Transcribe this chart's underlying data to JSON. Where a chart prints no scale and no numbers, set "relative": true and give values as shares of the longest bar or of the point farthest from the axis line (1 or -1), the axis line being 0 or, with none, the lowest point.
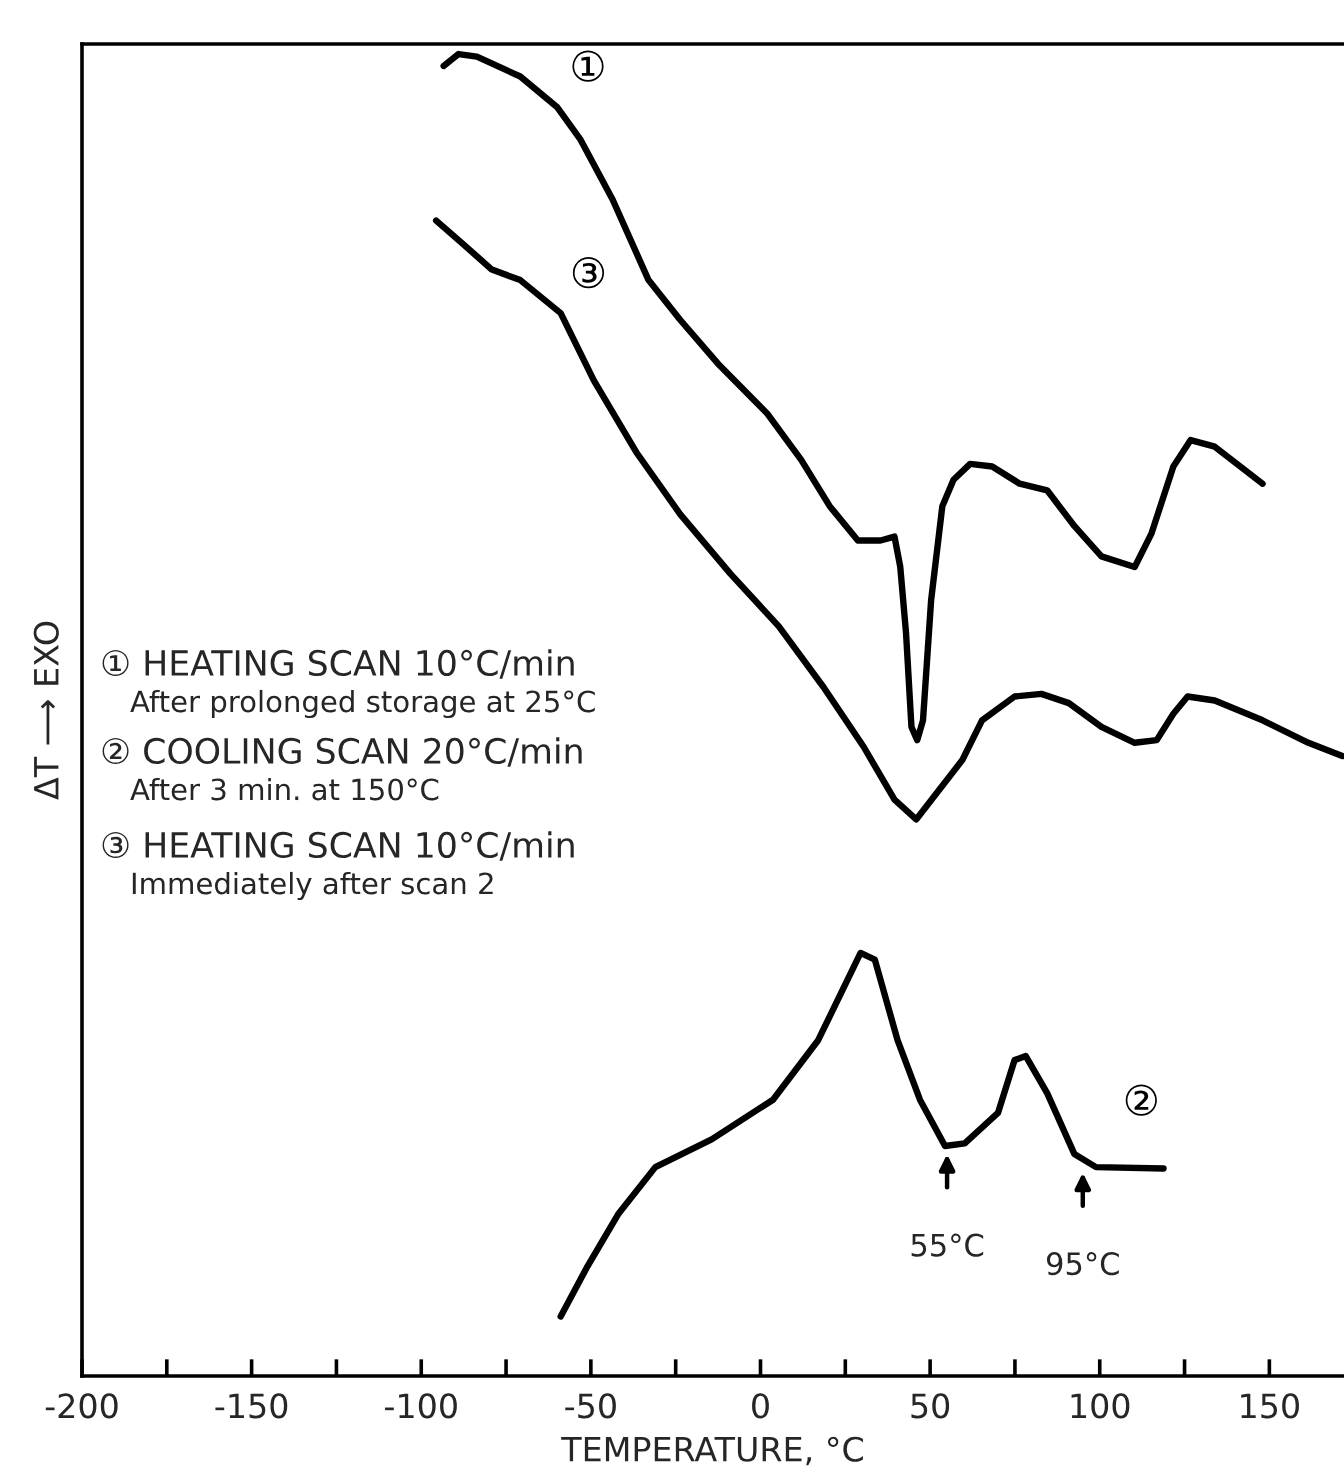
{
  "chart_data": {
    "type": "line",
    "relative": true,
    "xlabel": "TEMPERATURE, °C",
    "ylabel": "ΔT ⟶ EXO",
    "xlim": [
      -200,
      172
    ],
    "xticks": [
      -200,
      {
        "value": -175,
        "label": null
      },
      -150,
      {
        "value": -125,
        "label": null
      },
      -100,
      {
        "value": -75,
        "label": null
      },
      -50,
      {
        "value": -25,
        "label": null
      },
      0,
      {
        "value": 25,
        "label": null
      },
      50,
      {
        "value": 75,
        "label": null
      },
      100,
      {
        "value": 125,
        "label": null
      },
      150
    ],
    "grid": false,
    "marker": "none",
    "line_style": "solid",
    "series": [
      {
        "name": "①",
        "color": "#000000",
        "x": [
          -93.4,
          -89,
          -83.6,
          -70.8,
          -60,
          -53,
          -43.6,
          -33,
          -23.7,
          -12.6,
          2,
          12,
          20.4,
          28.7,
          35.4,
          39.5,
          41.2,
          42.9,
          44.5,
          46.2,
          47.9,
          50.3,
          53.6,
          56.9,
          61.8,
          68.3,
          76.4,
          84.5,
          92.5,
          100.5,
          110.3,
          115.2,
          121.7,
          126.8,
          133.9,
          148
        ],
        "values": [
          0.991,
          1.0,
          0.998,
          0.983,
          0.96,
          0.935,
          0.89,
          0.829,
          0.799,
          0.766,
          0.728,
          0.693,
          0.658,
          0.632,
          0.632,
          0.635,
          0.612,
          0.562,
          0.491,
          0.481,
          0.496,
          0.587,
          0.658,
          0.678,
          0.69,
          0.688,
          0.675,
          0.67,
          0.643,
          0.62,
          0.612,
          0.637,
          0.688,
          0.708,
          0.703,
          0.675
        ]
      },
      {
        "name": "②",
        "color": "#000000",
        "x": [
          -58.9,
          -51,
          -41.8,
          -31,
          -14.4,
          3.7,
          17,
          29.5,
          33.7,
          40.4,
          47,
          54.4,
          60.2,
          70,
          74.9,
          78.2,
          84.5,
          92.5,
          98.9,
          118.8
        ],
        "values": [
          0.045,
          0.083,
          0.123,
          0.158,
          0.179,
          0.209,
          0.254,
          0.32,
          0.315,
          0.254,
          0.209,
          0.174,
          0.176,
          0.199,
          0.239,
          0.242,
          0.214,
          0.168,
          0.158,
          0.157
        ]
      },
      {
        "name": "③",
        "color": "#000000",
        "x": [
          -95.6,
          -88,
          -79.2,
          -70.8,
          -58.9,
          -49.1,
          -36.4,
          -23.7,
          -8.9,
          5.4,
          18.6,
          30.4,
          39.5,
          45.9,
          59.5,
          65.3,
          74.9,
          82.8,
          90.9,
          100.5,
          110.3,
          116.8,
          121.7,
          125.9,
          133.9,
          148,
          161.5,
          171.5
        ],
        "values": [
          0.874,
          0.857,
          0.837,
          0.829,
          0.804,
          0.753,
          0.698,
          0.652,
          0.607,
          0.567,
          0.521,
          0.476,
          0.436,
          0.421,
          0.466,
          0.496,
          0.514,
          0.516,
          0.509,
          0.491,
          0.479,
          0.481,
          0.501,
          0.514,
          0.511,
          0.496,
          0.479,
          0.469
        ]
      }
    ],
    "annotations": [
      "① HEATING SCAN 10°C/min",
      "After prolonged storage at 25°C",
      "② COOLING SCAN 20°C/min",
      "After 3 min. at 150°C",
      "③ HEATING SCAN 10°C/min",
      "Immediately after scan 2",
      {
        "text": "55°C",
        "x": 55,
        "y": 0.174
      },
      {
        "text": "95°C",
        "x": 95,
        "y": 0.16
      }
    ]
  }
}
